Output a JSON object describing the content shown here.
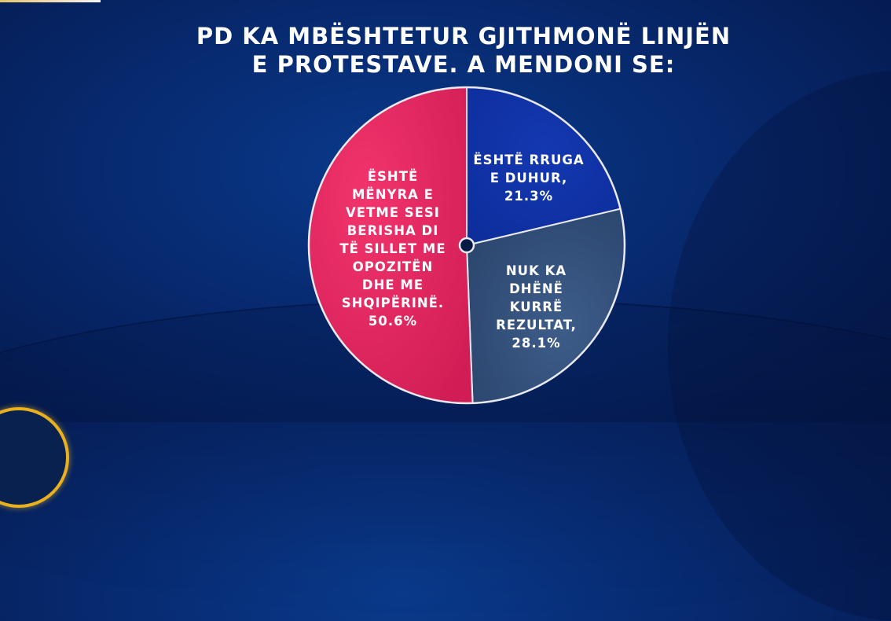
{
  "title": {
    "line1": "PD KA MBËSHTETUR GJITHMONË LINJËN",
    "line2": "E PROTESTAVE. A MENDONI SE:"
  },
  "colors": {
    "background": "#07296e",
    "slice_blue": "#0f33a8",
    "slice_grey": "#33507a",
    "slice_pink": "#e2285e",
    "border": "#e8e8ee",
    "center_dot": "#061a45"
  },
  "labels": {
    "blue": [
      "ËSHTË RRUGA",
      "E DUHUR,",
      "21.3%"
    ],
    "grey": [
      "NUK KA",
      "DHËNË",
      "KURRË",
      "REZULTAT,",
      "28.1%"
    ],
    "pink": [
      "ËSHTË",
      "MËNYRA E",
      "VETME SESI",
      "BERISHA DI",
      "TË SILLET ME",
      "OPOZITËN",
      "DHE ME",
      "SHQIPËRINË.",
      "50.6%"
    ]
  },
  "chart_data": {
    "type": "pie",
    "title": "PD KA MBËSHTETUR GJITHMONË LINJËN E PROTESTAVE. A MENDONI SE:",
    "categories": [
      "ËSHTË RRUGA E DUHUR",
      "NUK KA DHËNË KURRË REZULTAT",
      "ËSHTË MËNYRA E VETME SESI BERISHA DI TË SILLET ME OPOZITËN DHE ME SHQIPËRINË."
    ],
    "values": [
      21.3,
      28.1,
      50.6
    ],
    "unit": "%",
    "colors": [
      "#0f33a8",
      "#33507a",
      "#e2285e"
    ],
    "start_angle_deg": 0,
    "direction": "clockwise",
    "legend": "none (labels inside slices)"
  }
}
